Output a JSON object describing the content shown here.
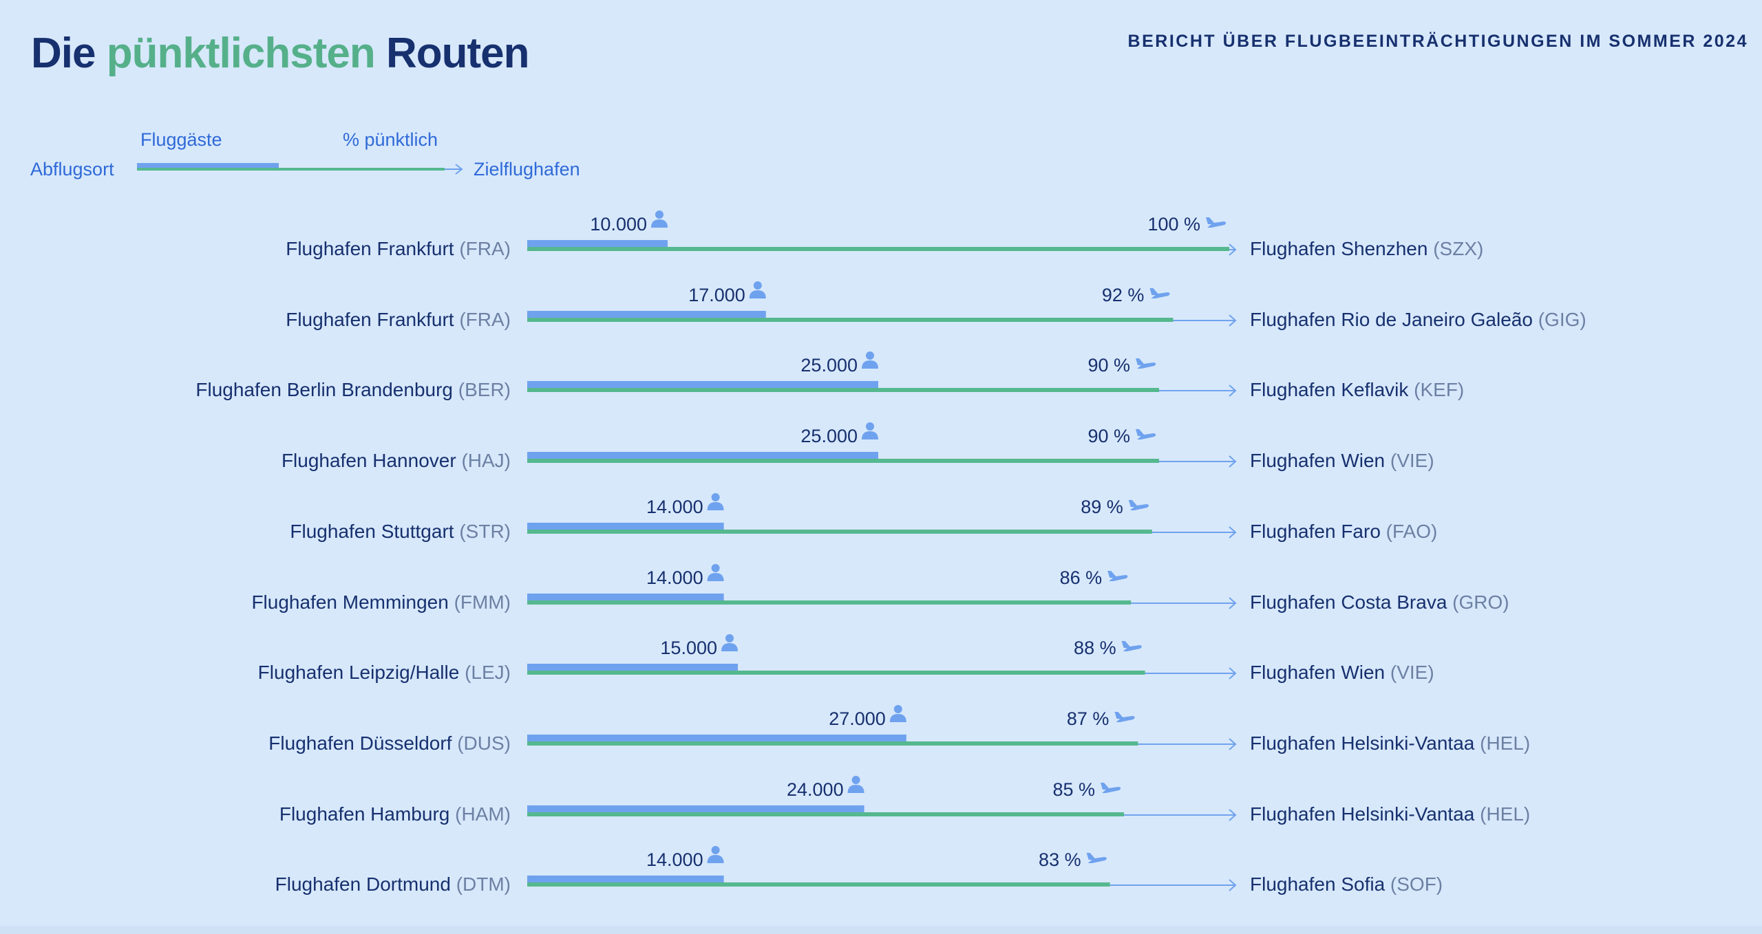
{
  "header": {
    "title_prefix": "Die ",
    "title_accent": "pünktlichsten",
    "title_suffix": " Routen",
    "report_label": "BERICHT ÜBER FLUGBEEINTRÄCHTIGUNGEN IM SOMMER 2024"
  },
  "legend": {
    "passengers": "Fluggäste",
    "ontime": "% pünktlich",
    "origin": "Abflugsort",
    "destination": "Zielflughafen"
  },
  "colors": {
    "background": "#d7e8fb",
    "passenger_bar": "#6fa2ee",
    "ontime_bar": "#55b88e",
    "arrow": "#6fa2ee",
    "text_dark": "#17306e",
    "text_code": "#6c80a3",
    "legend_text": "#2f6ad8",
    "title_accent": "#55b08a"
  },
  "icons": {
    "passenger": "person-icon",
    "ontime": "airplane-icon"
  },
  "chart_data": {
    "type": "bar",
    "passenger_scale_max": 50000,
    "ontime_scale_max": 100,
    "routes": [
      {
        "origin": "Flughafen Frankfurt",
        "origin_code": "(FRA)",
        "destination": "Flughafen Shenzhen",
        "destination_code": "(SZX)",
        "passengers": 10000,
        "passengers_label": "10.000",
        "ontime": 100,
        "ontime_label": "100 %"
      },
      {
        "origin": "Flughafen Frankfurt",
        "origin_code": "(FRA)",
        "destination": "Flughafen Rio de Janeiro Galeão",
        "destination_code": "(GIG)",
        "passengers": 17000,
        "passengers_label": "17.000",
        "ontime": 92,
        "ontime_label": "92 %"
      },
      {
        "origin": "Flughafen Berlin Brandenburg",
        "origin_code": "(BER)",
        "destination": "Flughafen Keflavik",
        "destination_code": "(KEF)",
        "passengers": 25000,
        "passengers_label": "25.000",
        "ontime": 90,
        "ontime_label": "90 %"
      },
      {
        "origin": "Flughafen Hannover",
        "origin_code": "(HAJ)",
        "destination": "Flughafen Wien",
        "destination_code": "(VIE)",
        "passengers": 25000,
        "passengers_label": "25.000",
        "ontime": 90,
        "ontime_label": "90 %"
      },
      {
        "origin": "Flughafen Stuttgart",
        "origin_code": "(STR)",
        "destination": "Flughafen Faro",
        "destination_code": "(FAO)",
        "passengers": 14000,
        "passengers_label": "14.000",
        "ontime": 89,
        "ontime_label": "89 %"
      },
      {
        "origin": "Flughafen Memmingen",
        "origin_code": "(FMM)",
        "destination": "Flughafen Costa Brava",
        "destination_code": "(GRO)",
        "passengers": 14000,
        "passengers_label": "14.000",
        "ontime": 86,
        "ontime_label": "86 %"
      },
      {
        "origin": "Flughafen Leipzig/Halle",
        "origin_code": "(LEJ)",
        "destination": "Flughafen Wien",
        "destination_code": "(VIE)",
        "passengers": 15000,
        "passengers_label": "15.000",
        "ontime": 88,
        "ontime_label": "88 %"
      },
      {
        "origin": "Flughafen Düsseldorf",
        "origin_code": "(DUS)",
        "destination": "Flughafen Helsinki-Vantaa",
        "destination_code": "(HEL)",
        "passengers": 27000,
        "passengers_label": "27.000",
        "ontime": 87,
        "ontime_label": "87 %"
      },
      {
        "origin": "Flughafen Hamburg",
        "origin_code": "(HAM)",
        "destination": "Flughafen Helsinki-Vantaa",
        "destination_code": "(HEL)",
        "passengers": 24000,
        "passengers_label": "24.000",
        "ontime": 85,
        "ontime_label": "85 %"
      },
      {
        "origin": "Flughafen Dortmund",
        "origin_code": "(DTM)",
        "destination": "Flughafen Sofia",
        "destination_code": "(SOF)",
        "passengers": 14000,
        "passengers_label": "14.000",
        "ontime": 83,
        "ontime_label": "83 %"
      }
    ]
  }
}
